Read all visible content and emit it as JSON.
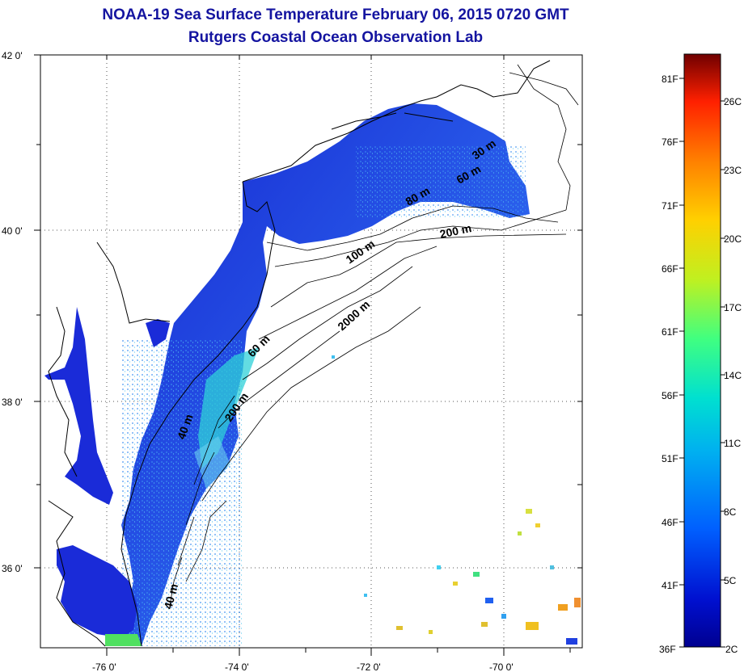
{
  "header": {
    "title": "NOAA-19 Sea Surface Temperature February 06, 2015 0720 GMT",
    "subtitle": "Rutgers Coastal Ocean Observation Lab"
  },
  "axes": {
    "lat_labels": [
      "42 0'",
      "40 0'",
      "38 0'",
      "36 0'"
    ],
    "lon_labels": [
      "-76 0'",
      "-74 0'",
      "-72 0'",
      "-70 0'"
    ]
  },
  "depth_contours": [
    "30 m",
    "60 m",
    "80 m",
    "200 m",
    "100 m",
    "2000 m",
    "60 m",
    "200 m",
    "40 m",
    "40 m"
  ],
  "colorbar": {
    "fahrenheit": [
      "81F",
      "76F",
      "71F",
      "66F",
      "61F",
      "56F",
      "51F",
      "46F",
      "41F",
      "36F"
    ],
    "celsius": [
      "26C",
      "23C",
      "20C",
      "17C",
      "14C",
      "11C",
      "8C",
      "5C",
      "2C"
    ],
    "colors": [
      "#0000aa",
      "#0030ff",
      "#00a0ff",
      "#00e0e0",
      "#40ff80",
      "#c0ff20",
      "#ffe000",
      "#ff8000",
      "#ff2000",
      "#800000"
    ]
  },
  "legend_colors": {
    "water_cold": "#1f2fd8",
    "water_mid": "#2f6cf0",
    "water_warm": "#30d8d0",
    "land": "#ffffff",
    "coast": "#000000"
  }
}
